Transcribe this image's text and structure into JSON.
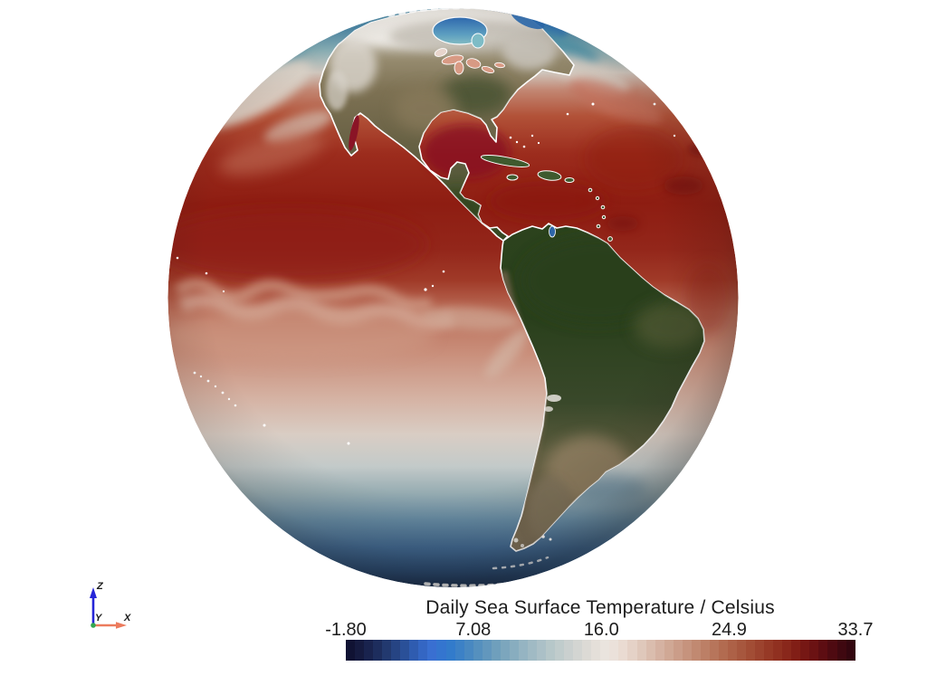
{
  "colorbar": {
    "title": "Daily Sea Surface Temperature / Celsius",
    "min": -1.8,
    "max": 33.7,
    "ticks": [
      {
        "label": "-1.80",
        "value": -1.8
      },
      {
        "label": "7.08",
        "value": 7.08
      },
      {
        "label": "16.0",
        "value": 16.0
      },
      {
        "label": "24.9",
        "value": 24.9
      },
      {
        "label": "33.7",
        "value": 33.7
      }
    ],
    "segments": 56,
    "colormap_anchors": [
      "#0e0e2d",
      "#151b40",
      "#1c2a58",
      "#233c74",
      "#2a4f96",
      "#3162bc",
      "#3a70d2",
      "#2f79cd",
      "#3f83c4",
      "#548fbe",
      "#689bbc",
      "#7da7bd",
      "#91b2c1",
      "#a4bcc5",
      "#b5c6c9",
      "#c5cecd",
      "#d4d5d2",
      "#e2ddd8",
      "#ece5df",
      "#eadcd3",
      "#e2cdc1",
      "#d9bcad",
      "#d1ab99",
      "#c99a85",
      "#c18a72",
      "#b97a60",
      "#b16a4f",
      "#a95a40",
      "#a04a33",
      "#973a27",
      "#8d2b1d",
      "#801d16",
      "#6f1313",
      "#590c12",
      "#400810",
      "#2d050e"
    ]
  },
  "orientation_axes": {
    "x_label": "X",
    "y_label": "Y",
    "z_label": "Z",
    "x_color": "#ec7b5d",
    "y_color": "#35a852",
    "z_color": "#2626d8"
  },
  "globe": {
    "sst_hot": "#8e1d12",
    "sst_cold": "#1a3153",
    "land_green": "#2d421f",
    "land_tan": "#7b6d4f",
    "snow": "#e8e6e1"
  }
}
